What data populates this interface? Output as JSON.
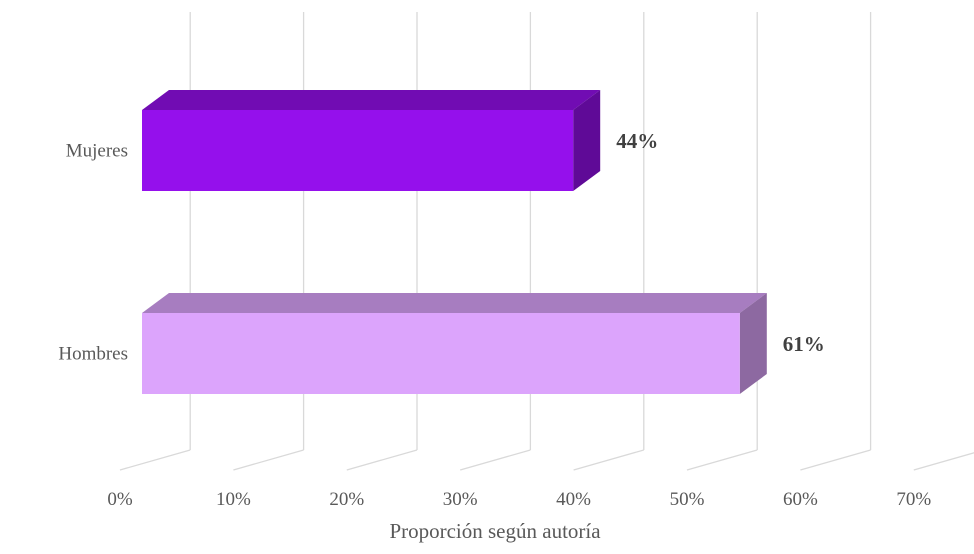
{
  "chart_data": {
    "type": "bar",
    "orientation": "horizontal",
    "style": "3d",
    "categories": [
      "Mujeres",
      "Hombres"
    ],
    "values": [
      44,
      61
    ],
    "value_labels": [
      "44%",
      "61%"
    ],
    "colors": {
      "Mujeres": "#9510EC",
      "Hombres": "#DCA4FC"
    },
    "xlim": [
      0,
      70
    ],
    "xticks": [
      "0%",
      "10%",
      "20%",
      "30%",
      "40%",
      "50%",
      "60%",
      "70%"
    ],
    "xlabel": "Proporción según autoría",
    "ylabel": "",
    "title": "",
    "grid": true,
    "legend": "none"
  }
}
